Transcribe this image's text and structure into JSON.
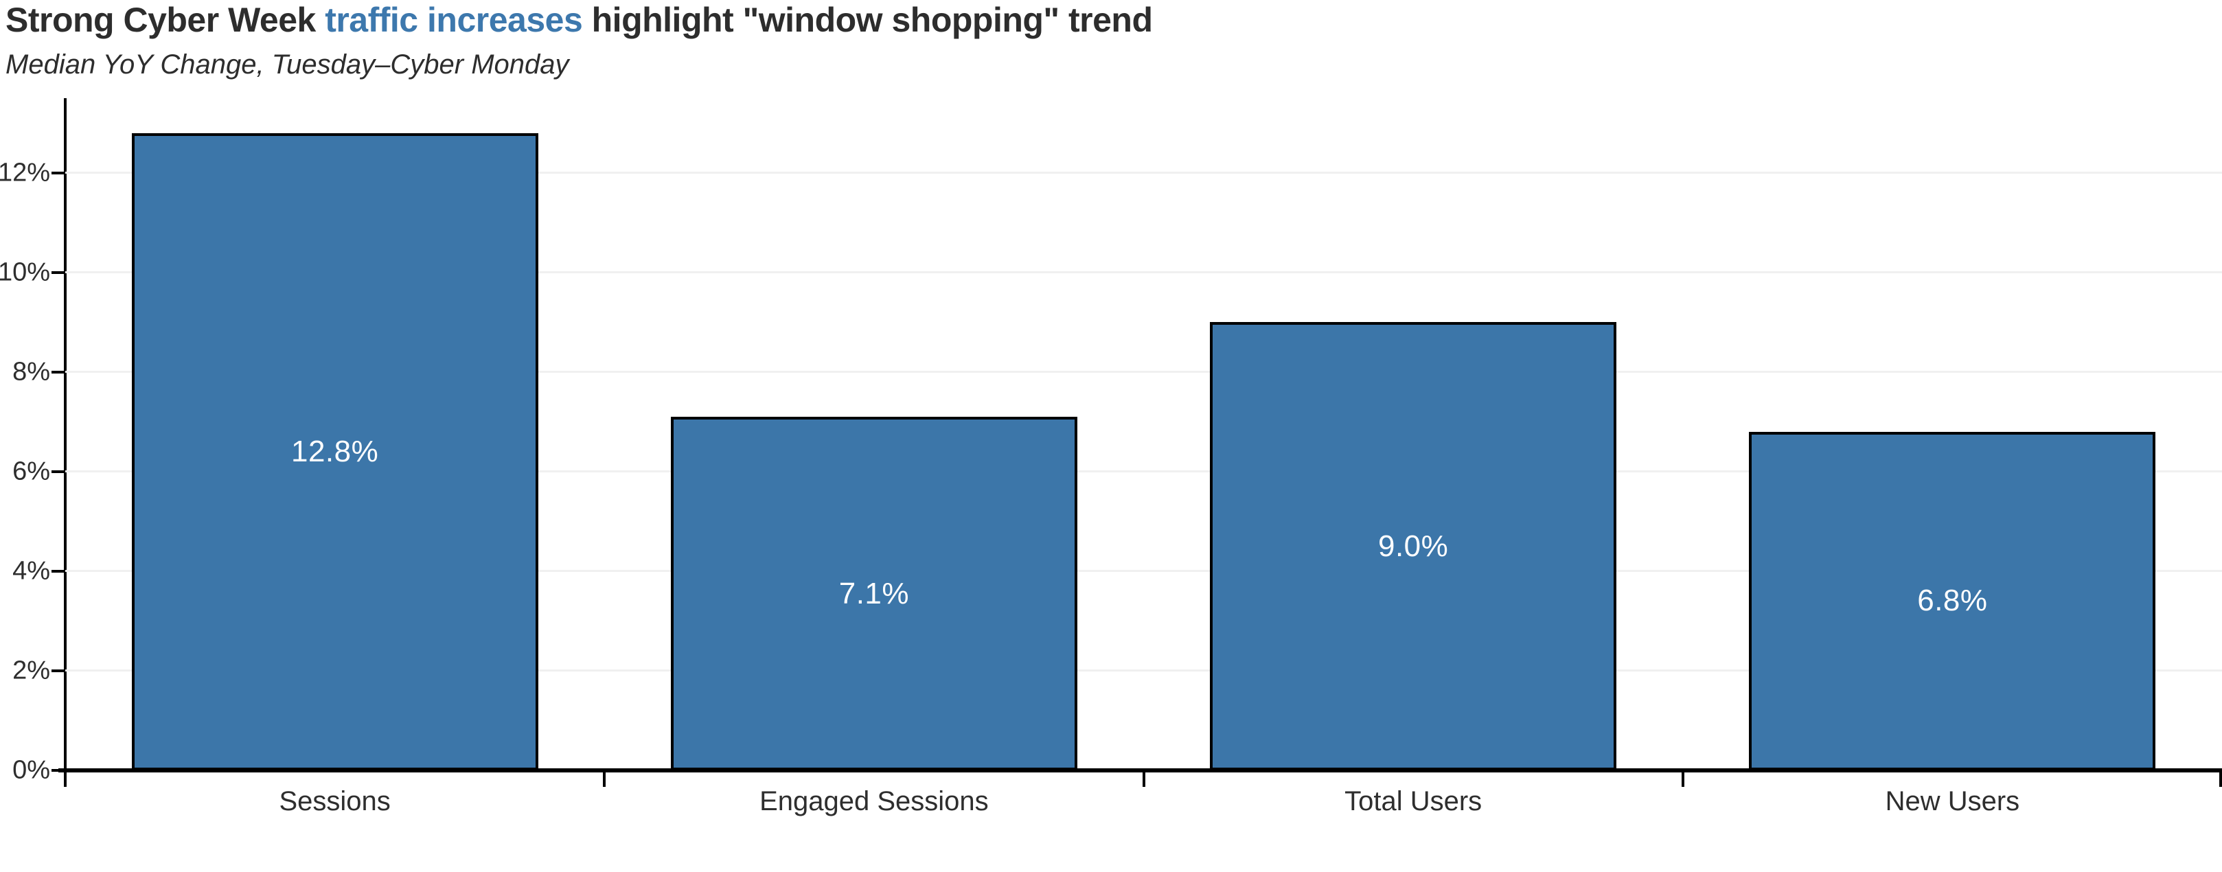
{
  "header": {
    "title_prefix": "Strong Cyber Week ",
    "title_highlight": "traffic increases",
    "title_suffix": " highlight \"window shopping\" trend",
    "subtitle": "Median YoY Change, Tuesday–Cyber Monday"
  },
  "colors": {
    "bar_fill": "#3C76A9",
    "bar_border": "#000000",
    "title_text": "#2D2D2D",
    "title_highlight": "#3D78AD",
    "grid_line": "#F0F0F0",
    "axis_line": "#000000",
    "tick_label": "#2E2E2E",
    "value_label": "#FFFFFF"
  },
  "chart_data": {
    "type": "bar",
    "title": "Strong Cyber Week traffic increases highlight \"window shopping\" trend",
    "subtitle": "Median YoY Change, Tuesday–Cyber Monday",
    "categories": [
      "Sessions",
      "Engaged Sessions",
      "Total Users",
      "New Users"
    ],
    "values": [
      12.8,
      7.1,
      9.0,
      6.8
    ],
    "value_labels": [
      "12.8%",
      "7.1%",
      "9.0%",
      "6.8%"
    ],
    "xlabel": "",
    "ylabel": "",
    "ylim": [
      0,
      13.5
    ],
    "ytick_values": [
      0,
      2,
      4,
      6,
      8,
      10,
      12
    ],
    "ytick_labels": [
      "0%",
      "2%",
      "4%",
      "6%",
      "8%",
      "10%",
      "12%"
    ],
    "grid": "horizontal",
    "legend": "none",
    "bar_width_fraction": 0.754,
    "bar_label_position": "center"
  }
}
